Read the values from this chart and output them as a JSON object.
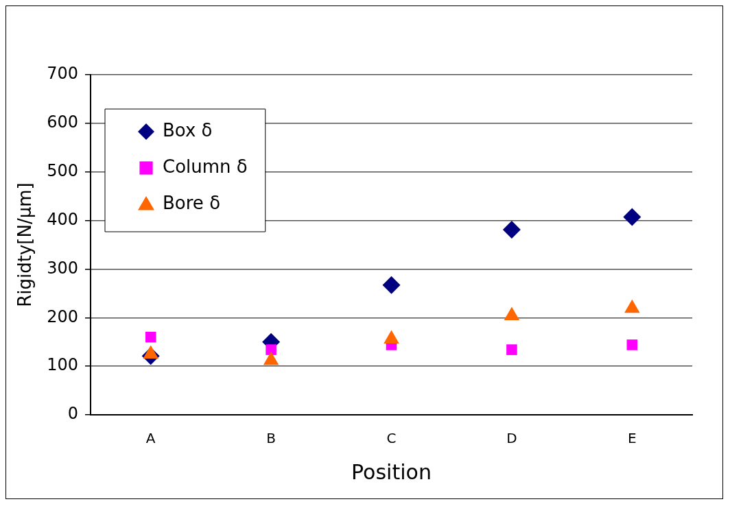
{
  "chart_data": {
    "type": "scatter",
    "xlabel": "Position",
    "ylabel": "Rigidty[N/μm]",
    "categories": [
      "A",
      "B",
      "C",
      "D",
      "E"
    ],
    "series": [
      {
        "name": "Box δ",
        "color": "#000080",
        "marker": "diamond",
        "values": [
          121,
          150,
          267,
          381,
          407
        ]
      },
      {
        "name": "Column δ",
        "color": "#ff00ff",
        "marker": "square",
        "values": [
          160,
          134,
          144,
          134,
          144
        ]
      },
      {
        "name": "Bore δ",
        "color": "#ff6600",
        "marker": "triangle",
        "values": [
          125,
          112,
          156,
          204,
          219
        ]
      }
    ],
    "ylim": [
      0,
      700
    ],
    "yticks": [
      0,
      100,
      200,
      300,
      400,
      500,
      600,
      700
    ],
    "grid": "y",
    "legend": "top left"
  }
}
